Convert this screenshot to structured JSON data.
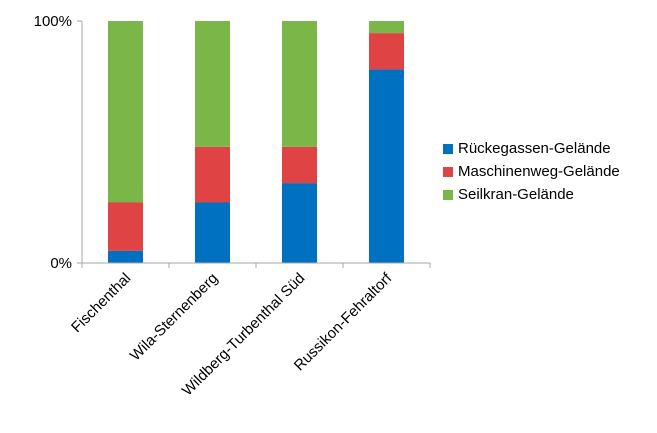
{
  "chart_data": {
    "type": "bar",
    "stacked": true,
    "percent": true,
    "categories": [
      "Fischenthal",
      "Wila-Sternenberg",
      "Wildberg-Turbenthal Süd",
      "Russikon-Fehraltorf"
    ],
    "series": [
      {
        "name": "Rückegassen-Gelände",
        "color": "#0070c0",
        "values": [
          5,
          25,
          33,
          80
        ]
      },
      {
        "name": "Maschinenweg-Gelände",
        "color": "#e04343",
        "values": [
          20,
          23,
          15,
          15
        ]
      },
      {
        "name": "Seilkran-Gelände",
        "color": "#7ab648",
        "values": [
          75,
          52,
          52,
          5
        ]
      }
    ],
    "ylim": [
      0,
      100
    ],
    "yticks": [
      "0%",
      "100%"
    ],
    "legend_position": "right",
    "grid": false,
    "title": "",
    "xlabel": "",
    "ylabel": ""
  }
}
